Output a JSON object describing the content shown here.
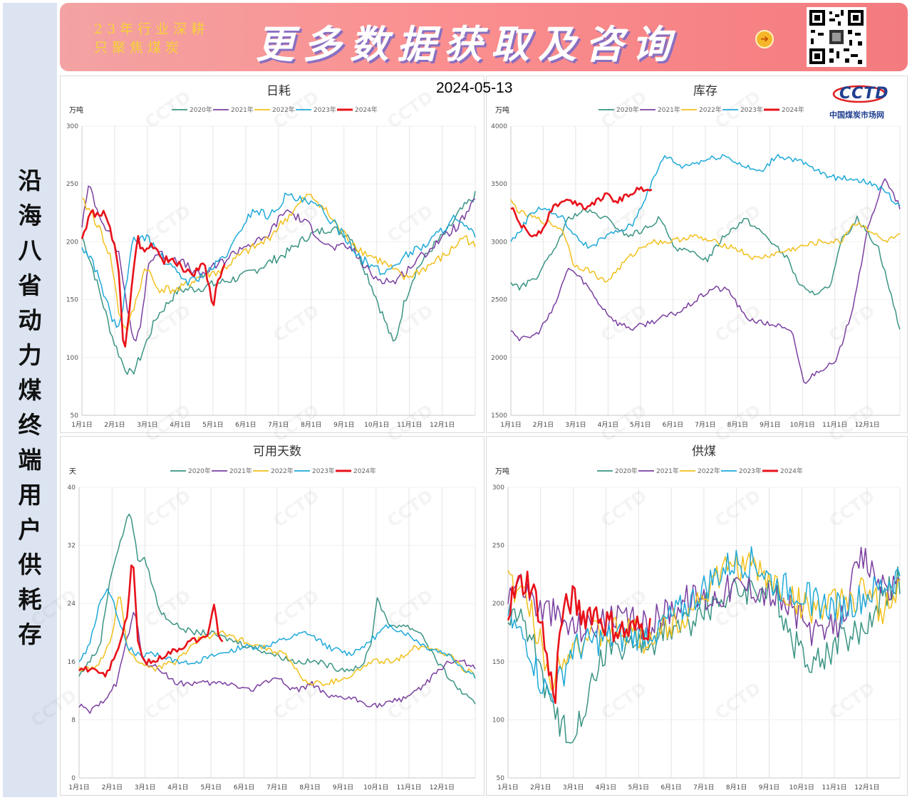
{
  "left_title": "沿海八省动力煤终端用户供耗存",
  "banner": {
    "slogan_line1": "23年行业深耕",
    "slogan_line2": "只聚焦煤炭",
    "headline": "更多数据获取及咨询",
    "arrow": "➔"
  },
  "date": "2024-05-13",
  "logo": {
    "name": "CCTD",
    "subtitle": "中国煤炭市场网"
  },
  "watermark": "CCTD",
  "colors": {
    "2020年": "#3a9484",
    "2021年": "#7b3fa0",
    "2022年": "#f2c01c",
    "2023年": "#1fa9d8",
    "2024年": "#e8111a"
  },
  "chart_data": [
    {
      "type": "line",
      "title": "日耗",
      "ylabel": "万吨",
      "ylim": [
        50,
        300
      ],
      "yticks": [
        50,
        100,
        150,
        200,
        250,
        300
      ],
      "x_ticks": [
        "1月1日",
        "2月1日",
        "3月1日",
        "4月1日",
        "5月1日",
        "6月1日",
        "7月1日",
        "8月1日",
        "9月1日",
        "10月1日",
        "11月1日",
        "12月1日"
      ],
      "series": [
        {
          "name": "2020年",
          "x": [
            1,
            10,
            20,
            30,
            40,
            47,
            55,
            70,
            90,
            110,
            130,
            150,
            170,
            190,
            210,
            230,
            250,
            270,
            290,
            300,
            310,
            325,
            340,
            350,
            365
          ],
          "values": [
            205,
            180,
            148,
            115,
            92,
            85,
            100,
            135,
            158,
            160,
            165,
            170,
            180,
            190,
            205,
            212,
            205,
            160,
            110,
            150,
            175,
            195,
            210,
            225,
            240
          ]
        },
        {
          "name": "2021年",
          "x": [
            1,
            8,
            15,
            25,
            35,
            42,
            48,
            55,
            62,
            70,
            90,
            110,
            130,
            150,
            170,
            190,
            210,
            230,
            250,
            270,
            290,
            310,
            330,
            350,
            365
          ],
          "values": [
            215,
            250,
            228,
            210,
            190,
            150,
            112,
            125,
            180,
            190,
            185,
            170,
            182,
            196,
            202,
            228,
            215,
            195,
            195,
            170,
            165,
            183,
            200,
            215,
            235
          ]
        },
        {
          "name": "2022年",
          "x": [
            1,
            10,
            20,
            28,
            35,
            42,
            50,
            60,
            70,
            90,
            110,
            130,
            150,
            170,
            190,
            210,
            220,
            240,
            260,
            280,
            300,
            320,
            340,
            355,
            365
          ],
          "values": [
            235,
            225,
            205,
            185,
            140,
            122,
            145,
            180,
            160,
            158,
            170,
            175,
            190,
            200,
            220,
            240,
            235,
            210,
            192,
            182,
            168,
            178,
            190,
            205,
            195
          ]
        },
        {
          "name": "2023年",
          "x": [
            1,
            10,
            20,
            28,
            35,
            40,
            48,
            60,
            80,
            100,
            120,
            140,
            150,
            160,
            175,
            190,
            205,
            220,
            240,
            260,
            280,
            300,
            320,
            345,
            365
          ],
          "values": [
            195,
            185,
            160,
            135,
            125,
            150,
            200,
            205,
            180,
            165,
            175,
            195,
            215,
            228,
            222,
            240,
            235,
            230,
            210,
            185,
            172,
            188,
            198,
            220,
            205
          ]
        },
        {
          "name": "2024年",
          "x": [
            1,
            10,
            20,
            28,
            35,
            40,
            45,
            52,
            58,
            65,
            75,
            90,
            105,
            115,
            122,
            128,
            133
          ],
          "values": [
            205,
            225,
            225,
            210,
            175,
            105,
            140,
            205,
            190,
            200,
            185,
            180,
            172,
            180,
            145,
            170,
            178
          ]
        }
      ]
    },
    {
      "type": "line",
      "title": "库存",
      "ylabel": "万吨",
      "ylim": [
        1500,
        4000
      ],
      "yticks": [
        1500,
        2000,
        2500,
        3000,
        3500,
        4000
      ],
      "x_ticks": [
        "1月1日",
        "2月1日",
        "3月1日",
        "4月1日",
        "5月1日",
        "6月1日",
        "7月1日",
        "8月1日",
        "9月1日",
        "10月1日",
        "11月1日",
        "12月1日"
      ],
      "series": [
        {
          "name": "2020年",
          "x": [
            1,
            10,
            25,
            40,
            55,
            70,
            90,
            110,
            125,
            140,
            155,
            170,
            185,
            200,
            220,
            240,
            260,
            270,
            280,
            300,
            310,
            325,
            345,
            365
          ],
          "values": [
            2650,
            2600,
            2700,
            2900,
            3200,
            3270,
            3200,
            3050,
            3100,
            3200,
            2950,
            2900,
            2850,
            3050,
            3200,
            3050,
            2850,
            2650,
            2550,
            2600,
            3000,
            3200,
            2950,
            2250
          ]
        },
        {
          "name": "2021年",
          "x": [
            1,
            10,
            25,
            40,
            55,
            70,
            85,
            100,
            115,
            130,
            145,
            160,
            175,
            190,
            205,
            220,
            235,
            250,
            265,
            275,
            290,
            305,
            320,
            335,
            350,
            365
          ],
          "values": [
            2250,
            2150,
            2200,
            2400,
            2780,
            2650,
            2450,
            2300,
            2250,
            2300,
            2350,
            2400,
            2500,
            2600,
            2580,
            2350,
            2300,
            2280,
            2200,
            1780,
            1900,
            1950,
            2400,
            3100,
            3550,
            3300
          ]
        },
        {
          "name": "2022年",
          "x": [
            1,
            10,
            25,
            40,
            50,
            60,
            75,
            90,
            110,
            130,
            150,
            170,
            190,
            210,
            230,
            250,
            270,
            290,
            300,
            310,
            320,
            330,
            350,
            365
          ],
          "values": [
            3350,
            3250,
            3200,
            3150,
            3100,
            2800,
            2750,
            2650,
            2850,
            3000,
            3000,
            3050,
            3000,
            2950,
            2850,
            2900,
            2950,
            3000,
            3000,
            3000,
            3150,
            3150,
            3000,
            3050
          ]
        },
        {
          "name": "2023年",
          "x": [
            1,
            10,
            20,
            30,
            40,
            50,
            60,
            75,
            90,
            105,
            115,
            125,
            135,
            145,
            160,
            180,
            200,
            220,
            235,
            250,
            270,
            290,
            305,
            320,
            340,
            355,
            365
          ],
          "values": [
            3000,
            3100,
            3250,
            3300,
            3250,
            3200,
            3050,
            2950,
            3050,
            3100,
            3150,
            3350,
            3550,
            3750,
            3650,
            3700,
            3750,
            3650,
            3600,
            3750,
            3700,
            3600,
            3550,
            3550,
            3500,
            3400,
            3300
          ]
        },
        {
          "name": "2024年",
          "x": [
            1,
            10,
            20,
            30,
            40,
            50,
            60,
            70,
            80,
            90,
            100,
            110,
            120,
            130,
            133
          ],
          "values": [
            3300,
            3150,
            3050,
            3100,
            3300,
            3350,
            3350,
            3300,
            3350,
            3400,
            3350,
            3400,
            3450,
            3470,
            3450
          ]
        }
      ]
    },
    {
      "type": "line",
      "title": "可用天数",
      "ylabel": "天",
      "ylim": [
        0,
        40
      ],
      "yticks": [
        0,
        8,
        16,
        24,
        32,
        40
      ],
      "x_ticks": [
        "1月1日",
        "2月1日",
        "3月1日",
        "4月1日",
        "5月1日",
        "6月1日",
        "7月1日",
        "8月1日",
        "9月1日",
        "10月1日",
        "11月1日",
        "12月1日"
      ],
      "series": [
        {
          "name": "2020年",
          "x": [
            1,
            10,
            20,
            30,
            40,
            48,
            55,
            62,
            75,
            90,
            105,
            120,
            140,
            160,
            180,
            200,
            220,
            240,
            260,
            270,
            275,
            285,
            300,
            315,
            330,
            345,
            365
          ],
          "values": [
            14,
            16,
            18,
            28,
            33,
            37,
            30,
            30,
            23,
            21,
            20,
            20,
            19,
            18,
            17,
            16,
            16,
            15,
            15,
            19,
            25,
            21,
            21,
            20,
            16,
            13,
            10
          ]
        },
        {
          "name": "2021年",
          "x": [
            1,
            10,
            20,
            35,
            45,
            52,
            60,
            75,
            90,
            105,
            120,
            140,
            160,
            180,
            200,
            215,
            230,
            250,
            270,
            280,
            300,
            320,
            340,
            355,
            365
          ],
          "values": [
            10,
            9,
            10,
            13,
            19,
            23,
            16,
            15,
            13,
            13,
            13,
            13,
            12,
            14,
            12,
            13,
            11,
            11,
            10,
            10,
            11,
            13,
            16,
            16,
            15
          ]
        },
        {
          "name": "2022年",
          "x": [
            1,
            15,
            25,
            32,
            38,
            45,
            55,
            70,
            90,
            110,
            130,
            150,
            170,
            190,
            210,
            230,
            250,
            270,
            290,
            300,
            310,
            325,
            340,
            355,
            365
          ],
          "values": [
            15,
            15,
            17,
            20,
            26,
            18,
            16,
            15,
            16,
            19,
            20,
            19,
            18,
            17,
            13,
            13,
            14,
            16,
            16,
            17,
            18,
            18,
            17,
            15,
            14
          ]
        },
        {
          "name": "2023年",
          "x": [
            1,
            10,
            20,
            28,
            35,
            45,
            55,
            70,
            90,
            110,
            130,
            150,
            170,
            190,
            210,
            230,
            250,
            270,
            285,
            300,
            320,
            340,
            355,
            365
          ],
          "values": [
            16,
            18,
            24,
            26,
            23,
            18,
            17,
            17,
            16,
            16,
            17,
            18,
            18,
            19,
            20,
            18,
            17,
            19,
            21,
            20,
            18,
            17,
            15,
            14
          ]
        },
        {
          "name": "2024年",
          "x": [
            1,
            10,
            25,
            35,
            45,
            50,
            55,
            60,
            70,
            80,
            95,
            105,
            115,
            120,
            125,
            130,
            134
          ],
          "values": [
            15,
            15,
            14,
            17,
            22,
            31,
            19,
            16,
            16,
            17,
            18,
            19,
            19,
            20,
            24,
            19,
            19
          ]
        }
      ]
    },
    {
      "type": "line",
      "title": "供煤",
      "ylabel": "万吨",
      "ylim": [
        50,
        300
      ],
      "yticks": [
        50,
        100,
        150,
        200,
        250,
        300
      ],
      "x_ticks": [
        "1月1日",
        "2月1日",
        "3月1日",
        "4月1日",
        "5月1日",
        "6月1日",
        "7月1日",
        "8月1日",
        "9月1日",
        "10月1日",
        "11月1日",
        "12月1日"
      ],
      "series": [
        {
          "name": "2020年",
          "x": [
            1,
            10,
            20,
            30,
            40,
            50,
            60,
            75,
            90,
            110,
            130,
            150,
            170,
            190,
            210,
            230,
            250,
            270,
            290,
            310,
            330,
            350,
            365
          ],
          "values": [
            185,
            190,
            180,
            150,
            110,
            95,
            90,
            120,
            160,
            165,
            165,
            175,
            185,
            200,
            210,
            215,
            205,
            160,
            150,
            170,
            175,
            210,
            220
          ]
        },
        {
          "name": "2021年",
          "x": [
            1,
            10,
            20,
            30,
            40,
            50,
            60,
            75,
            90,
            110,
            130,
            150,
            170,
            190,
            210,
            230,
            250,
            270,
            290,
            310,
            320,
            330,
            345,
            365
          ],
          "values": [
            210,
            220,
            210,
            195,
            195,
            185,
            180,
            180,
            185,
            185,
            180,
            195,
            205,
            205,
            215,
            215,
            205,
            190,
            170,
            185,
            215,
            240,
            220,
            210
          ]
        },
        {
          "name": "2022年",
          "x": [
            1,
            10,
            20,
            30,
            40,
            50,
            60,
            75,
            90,
            110,
            130,
            150,
            170,
            190,
            210,
            230,
            250,
            270,
            290,
            310,
            330,
            350,
            365
          ],
          "values": [
            220,
            210,
            200,
            170,
            130,
            155,
            165,
            170,
            175,
            175,
            170,
            180,
            195,
            215,
            235,
            230,
            215,
            200,
            195,
            200,
            210,
            195,
            215
          ]
        },
        {
          "name": "2023年",
          "x": [
            1,
            10,
            20,
            30,
            40,
            50,
            60,
            75,
            90,
            110,
            130,
            150,
            170,
            190,
            210,
            230,
            250,
            270,
            290,
            310,
            330,
            350,
            365
          ],
          "values": [
            190,
            175,
            165,
            135,
            120,
            135,
            160,
            165,
            170,
            170,
            175,
            185,
            200,
            220,
            235,
            235,
            215,
            210,
            200,
            195,
            205,
            215,
            225
          ]
        },
        {
          "name": "2024年",
          "x": [
            1,
            10,
            20,
            30,
            40,
            45,
            50,
            60,
            70,
            80,
            90,
            100,
            110,
            120,
            130,
            133
          ],
          "values": [
            195,
            215,
            220,
            195,
            135,
            125,
            185,
            205,
            190,
            195,
            185,
            180,
            175,
            178,
            182,
            178
          ]
        }
      ]
    }
  ]
}
